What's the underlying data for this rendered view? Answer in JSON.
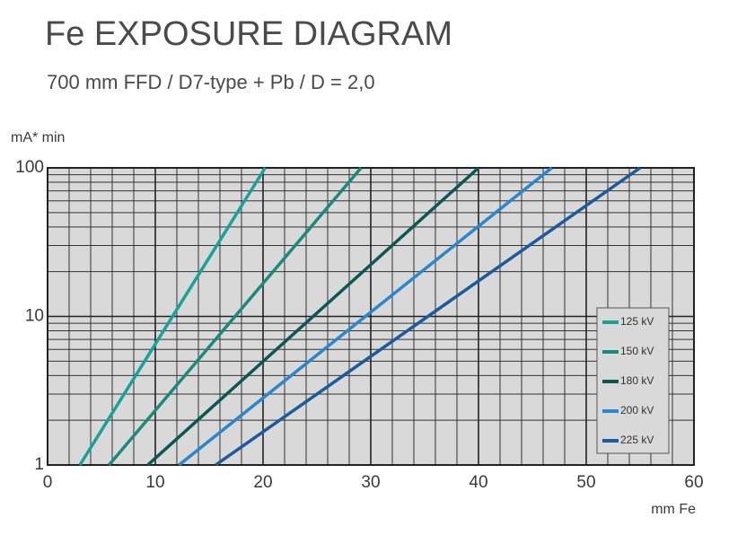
{
  "chart_data": {
    "type": "line",
    "title": "Fe EXPOSURE DIAGRAM",
    "subtitle": "700 mm FFD / D7-type + Pb / D = 2,0",
    "ylabel": "mA* min",
    "xlabel": "mm Fe",
    "xlim": [
      0,
      60
    ],
    "xticks": [
      0,
      10,
      20,
      30,
      40,
      50,
      60
    ],
    "xminor": [
      2,
      4,
      6,
      8,
      12,
      14,
      16,
      18,
      22,
      24,
      26,
      28,
      32,
      34,
      36,
      38,
      42,
      44,
      46,
      48,
      52,
      54,
      56,
      58
    ],
    "ylim": [
      1,
      100
    ],
    "yticks": [
      1,
      10,
      100
    ],
    "yminor": [
      2,
      3,
      4,
      5,
      6,
      7,
      8,
      9,
      20,
      30,
      40,
      50,
      60,
      70,
      80,
      90
    ],
    "yscale": "log",
    "grid": true,
    "legend": "lower right",
    "series": [
      {
        "name": "125 kV",
        "color": "#17a39a",
        "x": [
          3,
          20.2
        ],
        "values": [
          1,
          100
        ]
      },
      {
        "name": "150 kV",
        "color": "#1a8a7a",
        "x": [
          5.7,
          29.1
        ],
        "values": [
          1,
          100
        ]
      },
      {
        "name": "180 kV",
        "color": "#0c5753",
        "x": [
          9.3,
          40
        ],
        "values": [
          1,
          100
        ]
      },
      {
        "name": "200 kV",
        "color": "#2b86cc",
        "x": [
          12.2,
          46.8
        ],
        "values": [
          1,
          100
        ]
      },
      {
        "name": "225 kV",
        "color": "#1c5b9b",
        "x": [
          15.6,
          55
        ],
        "values": [
          1,
          100
        ]
      }
    ]
  }
}
